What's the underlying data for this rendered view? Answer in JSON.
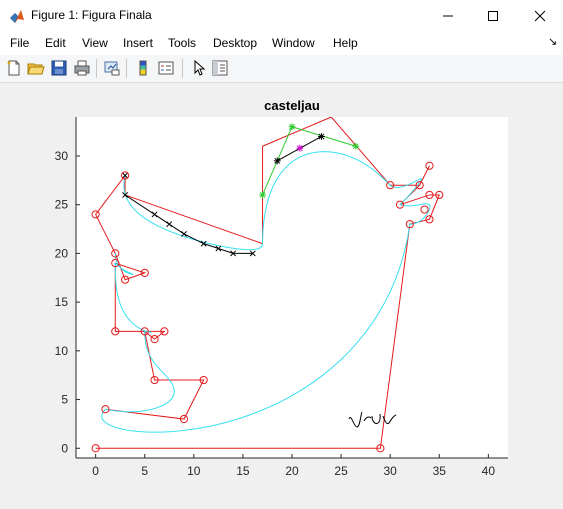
{
  "window": {
    "title": "Figure 1: Figura Finala",
    "app_icon": "matlab-icon",
    "controls": [
      "minimize-icon",
      "maximize-icon",
      "close-icon"
    ]
  },
  "menu": {
    "items": [
      "File",
      "Edit",
      "View",
      "Insert",
      "Tools",
      "Desktop",
      "Window",
      "Help"
    ],
    "dock_arrow": "↘"
  },
  "toolbar": {
    "buttons": [
      "new-figure-icon",
      "open-file-icon",
      "save-icon",
      "print-icon",
      "link-icon",
      "colorbar-icon",
      "legend-icon",
      "pointer-icon",
      "property-editor-icon"
    ]
  },
  "colors": {
    "control_polygon": "#e41a1c",
    "curve": "#35e0f0",
    "construction_green": "#2ec92e",
    "construction_black": "#000000",
    "construction_point": "#cc00cc",
    "marker": "#e41a1c"
  },
  "chart_data": {
    "type": "line",
    "title": "casteljau",
    "xlim": [
      -2,
      42
    ],
    "ylim": [
      -1,
      34
    ],
    "xticks": [
      0,
      5,
      10,
      15,
      20,
      25,
      30,
      35,
      40
    ],
    "yticks": [
      0,
      5,
      10,
      15,
      20,
      25,
      30
    ],
    "grid": false,
    "legend": null,
    "series": [
      {
        "kind": "control-polygon",
        "points": [
          [
            1,
            4
          ],
          [
            9,
            3
          ],
          [
            11,
            7
          ],
          [
            6,
            7
          ],
          [
            5,
            12
          ],
          [
            7,
            12
          ],
          [
            6,
            11.2
          ],
          [
            5,
            12
          ],
          [
            2,
            12
          ],
          [
            2,
            19
          ],
          [
            5,
            18
          ],
          [
            3,
            17.3
          ],
          [
            2,
            20
          ],
          [
            0,
            24
          ],
          [
            3,
            28
          ],
          [
            3,
            26
          ],
          [
            17,
            21
          ],
          [
            17,
            31
          ],
          [
            24,
            34
          ],
          [
            30,
            27
          ],
          [
            33,
            27
          ],
          [
            34,
            29
          ],
          [
            33,
            27
          ],
          [
            31,
            25
          ],
          [
            34,
            26
          ],
          [
            35,
            26
          ],
          [
            34,
            23.5
          ],
          [
            32,
            23
          ],
          [
            29,
            0
          ],
          [
            0,
            0
          ]
        ]
      },
      {
        "kind": "bezier-curve",
        "points": [
          [
            1,
            4
          ],
          [
            5,
            3.2
          ],
          [
            9,
            3.8
          ],
          [
            11,
            7
          ],
          [
            6,
            7
          ],
          [
            5,
            9
          ],
          [
            5,
            12
          ]
        ]
      },
      {
        "kind": "bezier-curve",
        "points": [
          [
            5,
            12
          ],
          [
            6,
            12
          ],
          [
            6.2,
            11.6
          ],
          [
            5,
            12
          ],
          [
            2,
            12
          ],
          [
            2,
            16
          ],
          [
            2,
            19
          ]
        ]
      },
      {
        "kind": "bezier-curve",
        "points": [
          [
            2,
            19
          ],
          [
            3,
            18
          ],
          [
            4,
            17.6
          ],
          [
            5,
            18
          ],
          [
            3,
            17.3
          ],
          [
            2,
            18.5
          ],
          [
            2,
            20
          ]
        ]
      },
      {
        "kind": "bezier-curve",
        "points": [
          [
            3,
            28
          ],
          [
            2,
            24
          ],
          [
            6,
            22
          ],
          [
            11,
            21
          ],
          [
            15,
            20
          ],
          [
            17,
            20
          ],
          [
            17,
            21
          ]
        ]
      },
      {
        "kind": "bezier-curve",
        "points": [
          [
            17,
            21
          ],
          [
            17,
            27
          ],
          [
            19,
            31
          ],
          [
            22,
            31.5
          ],
          [
            26,
            31
          ],
          [
            28,
            29
          ],
          [
            30,
            27
          ]
        ]
      },
      {
        "kind": "bezier-curve",
        "points": [
          [
            30,
            27
          ],
          [
            31,
            26
          ],
          [
            34,
            28
          ],
          [
            34,
            29
          ],
          [
            33,
            27
          ],
          [
            32,
            26
          ],
          [
            31,
            25
          ]
        ]
      },
      {
        "kind": "bezier-curve",
        "points": [
          [
            31,
            25
          ],
          [
            33,
            24.5
          ],
          [
            34,
            25.5
          ],
          [
            35,
            26
          ],
          [
            34,
            23.5
          ],
          [
            33,
            23
          ],
          [
            32,
            23
          ]
        ]
      },
      {
        "kind": "bezier-curve",
        "points": [
          [
            32,
            23
          ],
          [
            30,
            8
          ],
          [
            18,
            -0.5
          ],
          [
            5,
            0.5
          ],
          [
            0,
            1.5
          ],
          [
            0,
            3
          ],
          [
            1,
            4
          ]
        ]
      },
      {
        "kind": "casteljau-level-1",
        "points": [
          [
            3,
            26
          ],
          [
            6,
            24
          ],
          [
            7.5,
            23
          ],
          [
            9,
            22
          ],
          [
            11,
            21
          ],
          [
            12.5,
            20.5
          ],
          [
            14,
            20
          ],
          [
            16,
            20
          ]
        ],
        "marker": "x"
      },
      {
        "kind": "casteljau-level-2",
        "points": [
          [
            17,
            26
          ],
          [
            20,
            33
          ],
          [
            26.5,
            31
          ]
        ],
        "marker": "*"
      },
      {
        "kind": "casteljau-level-3",
        "points": [
          [
            18.5,
            29.5
          ],
          [
            23,
            32
          ]
        ],
        "marker": "*"
      },
      {
        "kind": "casteljau-point",
        "points": [
          [
            20.8,
            30.8
          ]
        ],
        "marker": "*"
      }
    ],
    "markers": [
      [
        1,
        4
      ],
      [
        9,
        3
      ],
      [
        11,
        7
      ],
      [
        6,
        7
      ],
      [
        7,
        12
      ],
      [
        6,
        11.2
      ],
      [
        5,
        12
      ],
      [
        2,
        12
      ],
      [
        2,
        19
      ],
      [
        5,
        18
      ],
      [
        3,
        17.3
      ],
      [
        2,
        20
      ],
      [
        0,
        24
      ],
      [
        3,
        28
      ],
      [
        0,
        0
      ],
      [
        29,
        0
      ],
      [
        30,
        27
      ],
      [
        33,
        27
      ],
      [
        34,
        29
      ],
      [
        31,
        25
      ],
      [
        34,
        26
      ],
      [
        35,
        26
      ],
      [
        33.5,
        24.5
      ],
      [
        34,
        23.5
      ],
      [
        32,
        23
      ]
    ],
    "signature": "Vrsv"
  }
}
